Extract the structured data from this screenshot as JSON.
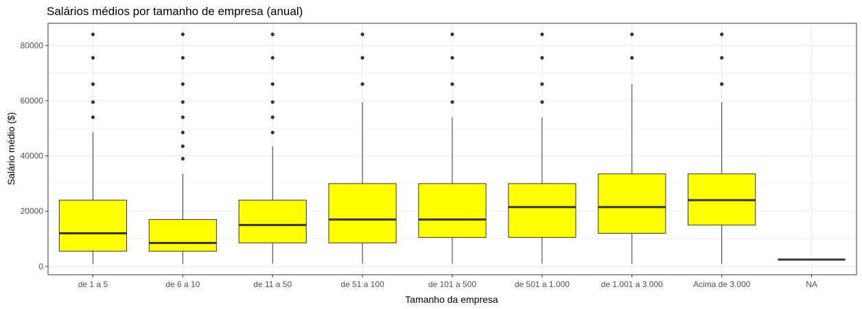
{
  "chart_data": {
    "type": "boxplot",
    "title": "Salários médios por tamanho de empresa (anual)",
    "xlabel": "Tamanho da empresa",
    "ylabel": "Salário médio ($)",
    "ylim": [
      -3000,
      88000
    ],
    "yticks": [
      0,
      20000,
      40000,
      60000,
      80000
    ],
    "ytick_labels": [
      "0",
      "20000",
      "40000",
      "60000",
      "80000"
    ],
    "grid": true,
    "colors": {
      "box_fill": "#ffff00",
      "stroke": "#333333",
      "grid": "#ebebeb",
      "panel_border": "#333333"
    },
    "categories": [
      "de 1 a 5",
      "de 6 a 10",
      "de 11 a 50",
      "de 51 a 100",
      "de 101 a 500",
      "de 501 a 1.000",
      "de 1.001 a 3.000",
      "Acima de 3.000",
      "NA"
    ],
    "boxes": [
      {
        "low": 1000,
        "q1": 5500,
        "median": 12000,
        "q3": 24000,
        "high": 48500,
        "outliers": [
          54000,
          59500,
          66000,
          75500,
          84000
        ]
      },
      {
        "low": 1000,
        "q1": 5500,
        "median": 8500,
        "q3": 17000,
        "high": 33500,
        "outliers": [
          39000,
          43500,
          48500,
          54000,
          59500,
          66000,
          75500,
          84000
        ]
      },
      {
        "low": 1000,
        "q1": 8500,
        "median": 15000,
        "q3": 24000,
        "high": 43500,
        "outliers": [
          48500,
          54000,
          59500,
          66000,
          75500,
          84000
        ]
      },
      {
        "low": 1000,
        "q1": 8500,
        "median": 17000,
        "q3": 30000,
        "high": 59500,
        "outliers": [
          66000,
          75500,
          84000
        ]
      },
      {
        "low": 1000,
        "q1": 10500,
        "median": 17000,
        "q3": 30000,
        "high": 54000,
        "outliers": [
          59500,
          66000,
          75500,
          84000
        ]
      },
      {
        "low": 1000,
        "q1": 10500,
        "median": 21500,
        "q3": 30000,
        "high": 54000,
        "outliers": [
          59500,
          66000,
          75500,
          84000
        ]
      },
      {
        "low": 1000,
        "q1": 12000,
        "median": 21500,
        "q3": 33500,
        "high": 66000,
        "outliers": [
          75500,
          84000
        ]
      },
      {
        "low": 1000,
        "q1": 15000,
        "median": 24000,
        "q3": 33500,
        "high": 59500,
        "outliers": [
          66000,
          75500,
          84000
        ]
      },
      {
        "low": 2500,
        "q1": 2500,
        "median": 2500,
        "q3": 2500,
        "high": 2500,
        "outliers": []
      }
    ]
  }
}
